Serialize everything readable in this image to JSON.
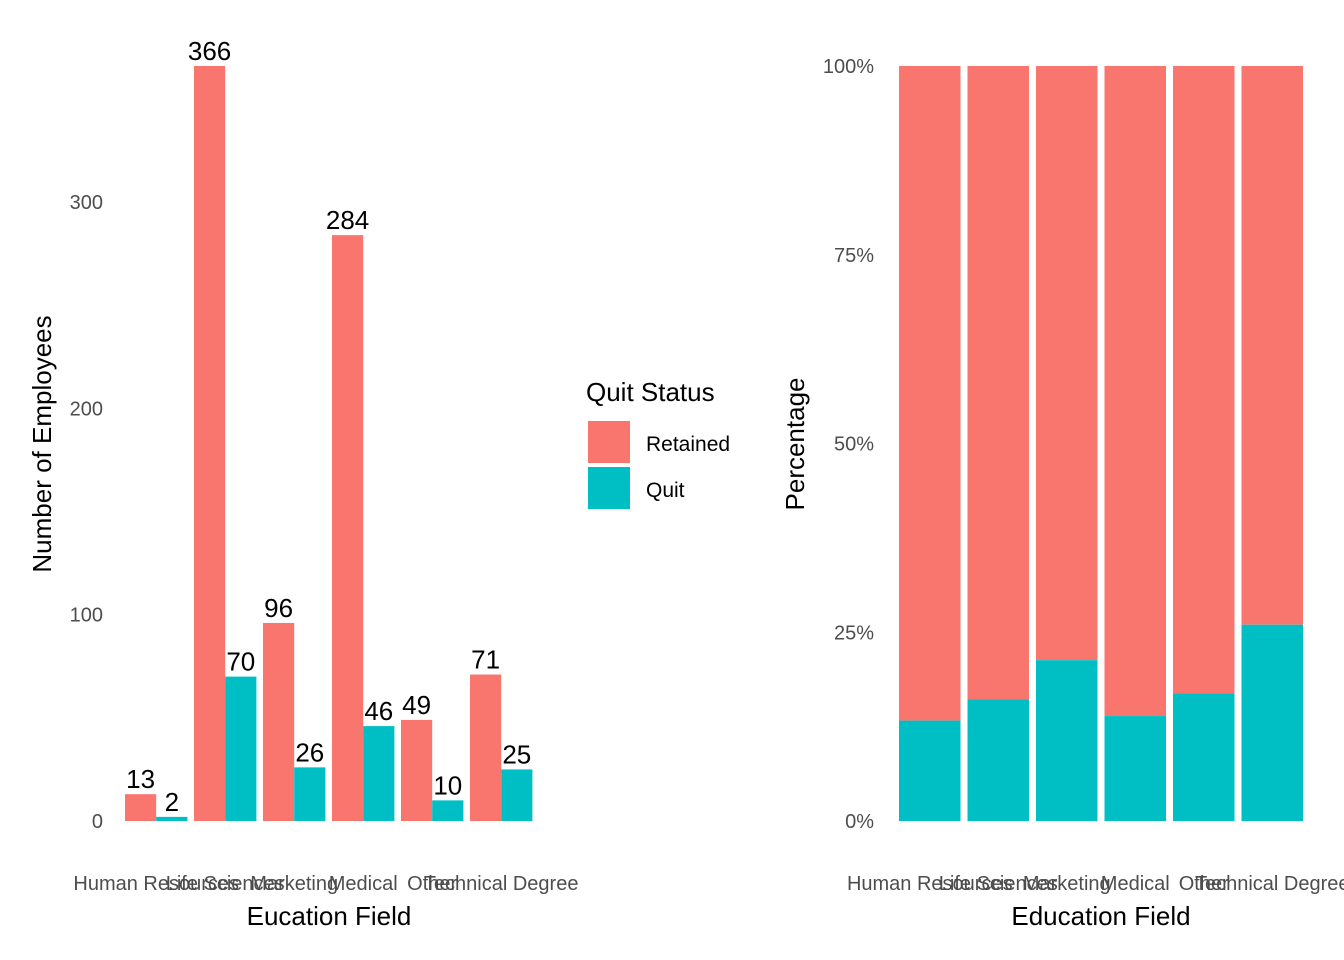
{
  "colors": {
    "Retained": "#F8766D",
    "Quit": "#00BFC4"
  },
  "legend": {
    "title": "Quit Status",
    "items": [
      {
        "label": "Retained",
        "color": "#F8766D"
      },
      {
        "label": "Quit",
        "color": "#00BFC4"
      }
    ]
  },
  "chart_data": [
    {
      "type": "bar",
      "mode": "dodge",
      "categories": [
        "Human Resources",
        "Life Sciences",
        "Marketing",
        "Medical",
        "Other",
        "Technical Degree"
      ],
      "series": [
        {
          "name": "Retained",
          "values": [
            13,
            366,
            96,
            284,
            49,
            71
          ]
        },
        {
          "name": "Quit",
          "values": [
            2,
            70,
            26,
            46,
            10,
            25
          ]
        }
      ],
      "data_labels": true,
      "xlabel": "Eucation Field",
      "ylabel": "Number of Employees",
      "ylim": [
        0,
        366
      ],
      "yticks": [
        0,
        100,
        200,
        300
      ],
      "grid": false,
      "legend": "right"
    },
    {
      "type": "bar",
      "mode": "fill",
      "categories": [
        "Human Resources",
        "Life Sciences",
        "Marketing",
        "Medical",
        "Other",
        "Technical Degree"
      ],
      "series": [
        {
          "name": "Retained",
          "values": [
            86.7,
            83.9,
            78.7,
            86.1,
            83.1,
            74.0
          ]
        },
        {
          "name": "Quit",
          "values": [
            13.3,
            16.1,
            21.3,
            13.9,
            16.9,
            26.0
          ]
        }
      ],
      "xlabel": "Education Field",
      "ylabel": "Percentage",
      "ylim": [
        0,
        100
      ],
      "yticks": [
        "0%",
        "25%",
        "50%",
        "75%",
        "100%"
      ],
      "grid": false,
      "legend": "none"
    }
  ]
}
